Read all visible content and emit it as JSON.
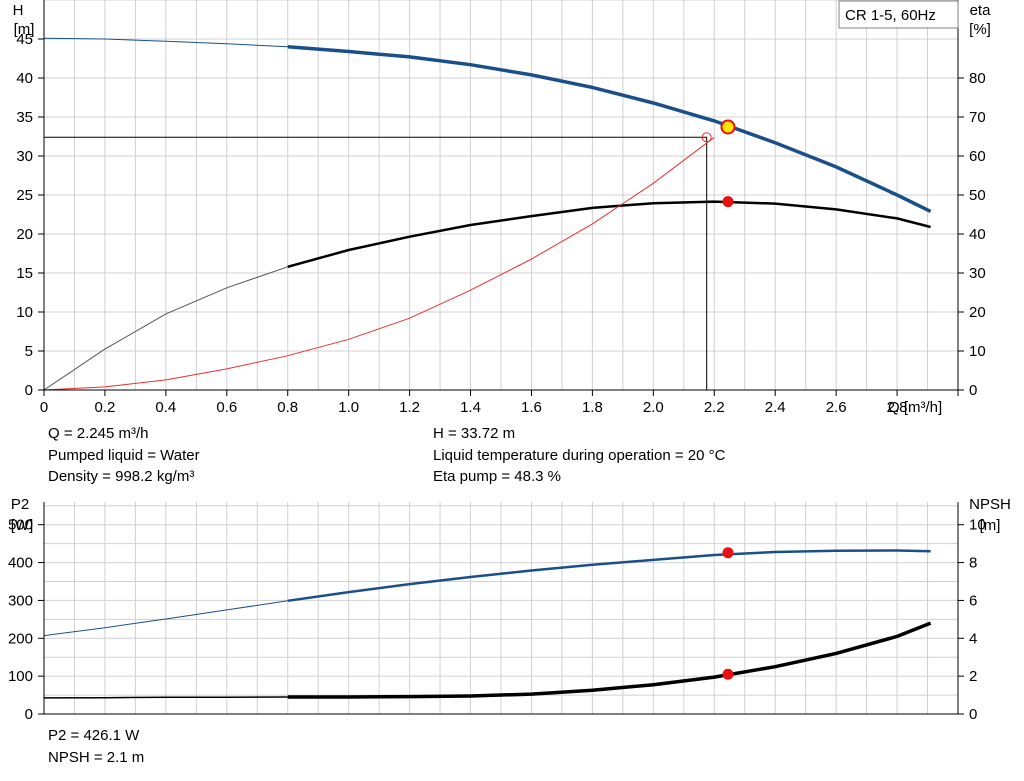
{
  "colors": {
    "head": "#1a4f8a",
    "eta": "#000000",
    "system": "#e83030",
    "p2": "#1a4f8a",
    "npsh": "#000000",
    "marker": "#e81010",
    "duty_marker": "#ffe600",
    "grid": "#d0d0d0"
  },
  "chart_data": [
    {
      "type": "line",
      "legend_title": "CR 1-5, 60Hz",
      "legend_position": "top-right",
      "grid": true,
      "x_label": "Q [m³/h]",
      "xlim": [
        0,
        3.0
      ],
      "x_ticks": [
        "0",
        "0.2",
        "0.4",
        "0.6",
        "0.8",
        "1.0",
        "1.2",
        "1.4",
        "1.6",
        "1.8",
        "2.0",
        "2.2",
        "2.4",
        "2.6",
        "2.8"
      ],
      "y_left": {
        "label_line1": "H",
        "label_line2": "[m]",
        "ylim": [
          0,
          50
        ],
        "ticks": [
          "0",
          "5",
          "10",
          "15",
          "20",
          "25",
          "30",
          "35",
          "40",
          "45"
        ]
      },
      "y_right": {
        "label_line1": "eta",
        "label_line2": "[%]",
        "ylim": [
          0,
          100
        ],
        "ticks": [
          "0",
          "10",
          "20",
          "30",
          "40",
          "50",
          "60",
          "70",
          "80"
        ]
      },
      "series": [
        {
          "key": "head",
          "axis": "left",
          "thin_until": 0.8,
          "x": [
            0,
            0.2,
            0.4,
            0.6,
            0.8,
            1.0,
            1.2,
            1.4,
            1.6,
            1.8,
            2.0,
            2.2,
            2.4,
            2.6,
            2.8,
            2.91
          ],
          "y": [
            45.1,
            45.0,
            44.7,
            44.4,
            44.0,
            43.4,
            42.7,
            41.7,
            40.4,
            38.8,
            36.8,
            34.5,
            31.7,
            28.6,
            25.0,
            22.9
          ]
        },
        {
          "key": "eta",
          "axis": "right",
          "thin_until": 0.8,
          "x": [
            0,
            0.2,
            0.4,
            0.6,
            0.8,
            1.0,
            1.2,
            1.4,
            1.6,
            1.8,
            2.0,
            2.2,
            2.4,
            2.6,
            2.8,
            2.91
          ],
          "y": [
            0,
            10.5,
            19.5,
            26.2,
            31.6,
            35.9,
            39.3,
            42.3,
            44.6,
            46.7,
            47.9,
            48.3,
            47.8,
            46.3,
            44.0,
            41.8
          ]
        },
        {
          "key": "system",
          "axis": "left",
          "thin_until": 3.0,
          "x": [
            0,
            0.2,
            0.4,
            0.6,
            0.8,
            1.0,
            1.2,
            1.4,
            1.6,
            1.8,
            2.0,
            2.2
          ],
          "y": [
            0,
            0.4,
            1.3,
            2.7,
            4.4,
            6.5,
            9.2,
            12.8,
            16.8,
            21.3,
            26.5,
            32.4
          ]
        }
      ],
      "duty_point": {
        "x": 2.245,
        "head": 33.72,
        "eta": 48.3,
        "system_head": 32.4
      }
    },
    {
      "type": "line",
      "grid": true,
      "xlim": [
        0,
        3.0
      ],
      "y_left": {
        "label_line1": "P2",
        "label_line2": "[W]",
        "ylim": [
          0,
          560
        ],
        "ticks": [
          "0",
          "100",
          "200",
          "300",
          "400",
          "500"
        ]
      },
      "y_right": {
        "label_line1": "NPSH",
        "label_line2": "[m]",
        "ylim": [
          0,
          11.2
        ],
        "ticks": [
          "0",
          "2",
          "4",
          "6",
          "8",
          "10"
        ]
      },
      "series": [
        {
          "key": "p2",
          "axis": "left",
          "thin_until": 0.8,
          "x": [
            0,
            0.2,
            0.4,
            0.6,
            0.8,
            1.0,
            1.2,
            1.4,
            1.6,
            1.8,
            2.0,
            2.2,
            2.4,
            2.6,
            2.8,
            2.91
          ],
          "y": [
            207,
            228,
            251,
            275,
            299,
            322,
            343,
            362,
            379,
            394,
            407,
            420,
            428,
            431,
            432,
            430
          ]
        },
        {
          "key": "npsh",
          "axis": "right",
          "thin_until": 0.8,
          "x": [
            0,
            0.2,
            0.4,
            0.6,
            0.8,
            1.0,
            1.2,
            1.4,
            1.6,
            1.8,
            2.0,
            2.2,
            2.4,
            2.6,
            2.8,
            2.91
          ],
          "y": [
            0.85,
            0.86,
            0.88,
            0.89,
            0.9,
            0.9,
            0.92,
            0.95,
            1.05,
            1.25,
            1.55,
            1.95,
            2.5,
            3.2,
            4.1,
            4.8
          ]
        }
      ],
      "duty_point": {
        "x": 2.245,
        "p2": 426.1,
        "npsh": 2.1
      }
    }
  ],
  "info": {
    "q": "Q = 2.245 m³/h",
    "liquid": "Pumped liquid = Water",
    "density": "Density = 998.2 kg/m³",
    "h": "H = 33.72 m",
    "temp": "Liquid temperature during operation = 20 °C",
    "eta": "Eta pump = 48.3 %",
    "p2": "P2 = 426.1 W",
    "npsh": "NPSH = 2.1 m"
  }
}
